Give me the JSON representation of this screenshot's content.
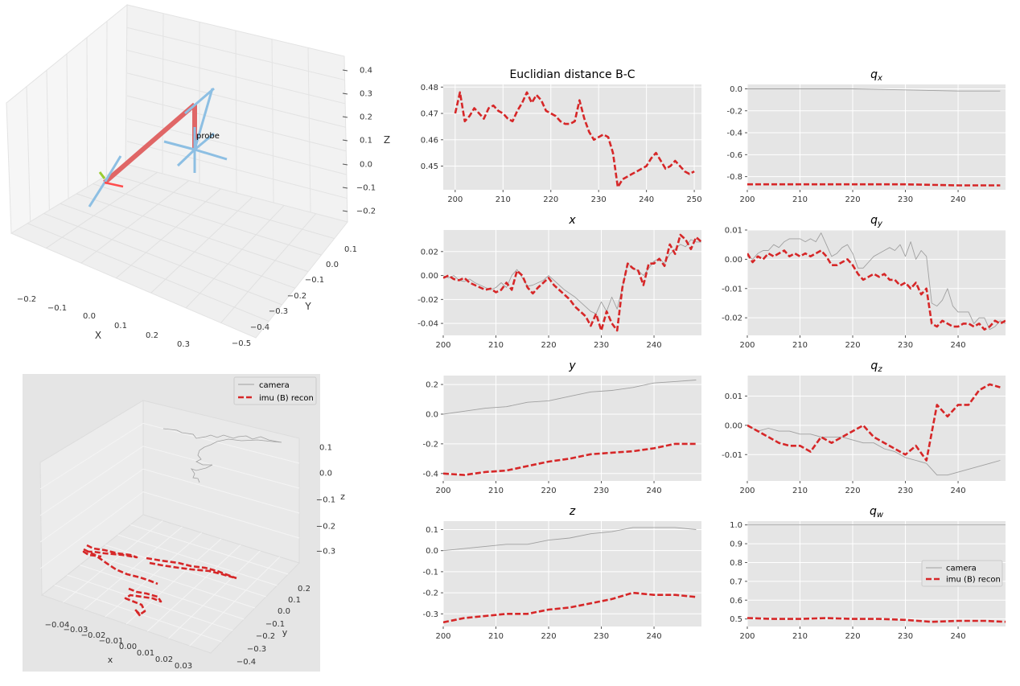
{
  "chart_data": [
    {
      "id": "frames3d",
      "type": "scatter",
      "title": "",
      "xlabel": "X",
      "ylabel": "Y",
      "zlabel": "Z",
      "xticks": [
        "−0.2",
        "−0.1",
        "0.0",
        "0.1",
        "0.2",
        "0.3"
      ],
      "yticks": [
        "0.1",
        "0.0",
        "−0.1",
        "−0.2",
        "−0.3",
        "−0.4",
        "−0.5"
      ],
      "zticks": [
        "0.4",
        "0.3",
        "0.2",
        "0.1",
        "0.0",
        "−0.1",
        "−0.2"
      ],
      "annotations": [
        "probe"
      ],
      "colors": {
        "arrow": "#8dbfe3",
        "link": "#e06666",
        "small_green": "#9acd32"
      }
    },
    {
      "id": "traj3d",
      "type": "line",
      "xlabel": "x",
      "ylabel": "y",
      "zlabel": "z",
      "xticks": [
        "−0.04",
        "−0.03",
        "−0.02",
        "−0.01",
        "0.00",
        "0.01",
        "0.02",
        "0.03"
      ],
      "yticks": [
        "0.2",
        "0.1",
        "0.0",
        "−0.1",
        "−0.2",
        "−0.3",
        "−0.4"
      ],
      "zticks": [
        "0.1",
        "0.0",
        "−0.1",
        "−0.2",
        "−0.3"
      ],
      "legend": [
        "camera",
        "imu (B) recon"
      ],
      "legend_position": "top-right"
    },
    {
      "id": "dist",
      "type": "line",
      "title": "Euclidian distance B-C",
      "x": [
        200,
        201,
        202,
        203,
        204,
        205,
        206,
        207,
        208,
        209,
        210,
        211,
        212,
        213,
        214,
        215,
        216,
        217,
        218,
        219,
        220,
        221,
        222,
        223,
        224,
        225,
        226,
        227,
        228,
        229,
        230,
        231,
        232,
        233,
        234,
        235,
        236,
        237,
        238,
        239,
        240,
        241,
        242,
        243,
        244,
        245,
        246,
        247,
        248,
        249,
        250
      ],
      "series": [
        {
          "name": "",
          "style": "dashed",
          "color": "#d62728",
          "values": [
            0.47,
            0.478,
            0.467,
            0.469,
            0.472,
            0.47,
            0.468,
            0.472,
            0.473,
            0.471,
            0.47,
            0.468,
            0.467,
            0.471,
            0.474,
            0.478,
            0.474,
            0.477,
            0.475,
            0.471,
            0.47,
            0.469,
            0.467,
            0.466,
            0.466,
            0.467,
            0.475,
            0.468,
            0.463,
            0.46,
            0.461,
            0.462,
            0.461,
            0.455,
            0.442,
            0.445,
            0.446,
            0.447,
            0.448,
            0.449,
            0.45,
            0.453,
            0.455,
            0.452,
            0.449,
            0.45,
            0.452,
            0.45,
            0.448,
            0.447,
            0.448
          ]
        }
      ],
      "xlim": [
        197.5,
        251.5
      ],
      "ylim": [
        0.441,
        0.481
      ],
      "xticks": [
        200,
        210,
        220,
        230,
        240,
        250
      ],
      "yticks": [
        0.45,
        0.46,
        0.47,
        0.48
      ]
    },
    {
      "id": "qx",
      "type": "line",
      "title": "q_x",
      "x": [
        200,
        210,
        220,
        230,
        240,
        248
      ],
      "series": [
        {
          "name": "camera",
          "style": "solid",
          "color": "#a0a0a0",
          "values": [
            0.0,
            0.0,
            0.0,
            -0.01,
            -0.02,
            -0.02
          ]
        },
        {
          "name": "imu (B) recon",
          "style": "dashed",
          "color": "#d62728",
          "values": [
            -0.87,
            -0.87,
            -0.87,
            -0.87,
            -0.88,
            -0.88
          ]
        }
      ],
      "xlim": [
        200,
        249
      ],
      "ylim": [
        -0.92,
        0.04
      ],
      "xticks": [
        200,
        210,
        220,
        230,
        240
      ],
      "yticks": [
        0.0,
        -0.2,
        -0.4,
        -0.6,
        -0.8
      ]
    },
    {
      "id": "x",
      "type": "line",
      "title": "x",
      "x": [
        200,
        201,
        202,
        203,
        204,
        205,
        206,
        207,
        208,
        209,
        210,
        211,
        212,
        213,
        214,
        215,
        216,
        217,
        218,
        219,
        220,
        221,
        222,
        223,
        224,
        225,
        226,
        227,
        228,
        229,
        230,
        231,
        232,
        233,
        234,
        235,
        236,
        237,
        238,
        239,
        240,
        241,
        242,
        243,
        244,
        245,
        246,
        247,
        248,
        249
      ],
      "series": [
        {
          "name": "camera",
          "style": "solid",
          "color": "#a0a0a0",
          "values": [
            0.0,
            -0.002,
            0.0,
            -0.004,
            -0.005,
            -0.003,
            -0.006,
            -0.008,
            -0.01,
            -0.012,
            -0.01,
            -0.006,
            -0.01,
            0.0,
            0.005,
            -0.002,
            -0.009,
            -0.008,
            -0.006,
            -0.004,
            0.0,
            -0.004,
            -0.008,
            -0.012,
            -0.015,
            -0.018,
            -0.022,
            -0.026,
            -0.03,
            -0.032,
            -0.022,
            -0.03,
            -0.018,
            -0.028,
            -0.01,
            0.01,
            0.006,
            0.004,
            0.0,
            0.006,
            0.012,
            0.014,
            0.01,
            0.018,
            0.022,
            0.026,
            0.024,
            0.03,
            0.028,
            0.028
          ]
        },
        {
          "name": "imu (B) recon",
          "style": "dashed",
          "color": "#d62728",
          "values": [
            -0.002,
            0.0,
            -0.003,
            -0.004,
            -0.002,
            -0.006,
            -0.008,
            -0.01,
            -0.012,
            -0.011,
            -0.014,
            -0.012,
            -0.006,
            -0.012,
            0.004,
            0.0,
            -0.01,
            -0.015,
            -0.01,
            -0.006,
            -0.002,
            -0.008,
            -0.012,
            -0.016,
            -0.02,
            -0.026,
            -0.03,
            -0.034,
            -0.042,
            -0.032,
            -0.046,
            -0.03,
            -0.04,
            -0.046,
            -0.01,
            0.01,
            0.006,
            0.004,
            -0.008,
            0.01,
            0.01,
            0.014,
            0.008,
            0.026,
            0.018,
            0.034,
            0.03,
            0.022,
            0.032,
            0.028
          ]
        }
      ],
      "xlim": [
        200,
        249
      ],
      "ylim": [
        -0.05,
        0.038
      ],
      "xticks": [
        200,
        210,
        220,
        230,
        240
      ],
      "yticks": [
        0.02,
        0.0,
        -0.02,
        -0.04
      ]
    },
    {
      "id": "qy",
      "type": "line",
      "title": "q_y",
      "x": [
        200,
        201,
        202,
        203,
        204,
        205,
        206,
        207,
        208,
        209,
        210,
        211,
        212,
        213,
        214,
        215,
        216,
        217,
        218,
        219,
        220,
        221,
        222,
        223,
        224,
        225,
        226,
        227,
        228,
        229,
        230,
        231,
        232,
        233,
        234,
        235,
        236,
        237,
        238,
        239,
        240,
        241,
        242,
        243,
        244,
        245,
        246,
        247,
        248,
        249
      ],
      "series": [
        {
          "name": "camera",
          "style": "solid",
          "color": "#a0a0a0",
          "values": [
            0.001,
            0.0,
            0.002,
            0.003,
            0.003,
            0.005,
            0.004,
            0.006,
            0.007,
            0.007,
            0.007,
            0.006,
            0.007,
            0.006,
            0.009,
            0.005,
            0.001,
            0.002,
            0.004,
            0.005,
            0.002,
            -0.003,
            -0.003,
            -0.001,
            0.001,
            0.002,
            0.003,
            0.004,
            0.003,
            0.005,
            0.001,
            0.006,
            0.0,
            0.003,
            0.001,
            -0.015,
            -0.016,
            -0.014,
            -0.01,
            -0.016,
            -0.018,
            -0.018,
            -0.018,
            -0.022,
            -0.02,
            -0.02,
            -0.024,
            -0.023,
            -0.021,
            -0.022
          ]
        },
        {
          "name": "imu (B) recon",
          "style": "dashed",
          "color": "#d62728",
          "values": [
            0.002,
            -0.001,
            0.001,
            0.0,
            0.002,
            0.001,
            0.002,
            0.003,
            0.001,
            0.002,
            0.001,
            0.002,
            0.001,
            0.002,
            0.003,
            0.001,
            -0.002,
            -0.002,
            -0.001,
            0.0,
            -0.002,
            -0.005,
            -0.007,
            -0.006,
            -0.005,
            -0.006,
            -0.005,
            -0.007,
            -0.007,
            -0.009,
            -0.008,
            -0.01,
            -0.008,
            -0.012,
            -0.01,
            -0.022,
            -0.023,
            -0.021,
            -0.022,
            -0.023,
            -0.023,
            -0.022,
            -0.022,
            -0.023,
            -0.022,
            -0.024,
            -0.023,
            -0.021,
            -0.022,
            -0.021
          ]
        }
      ],
      "xlim": [
        200,
        249
      ],
      "ylim": [
        -0.026,
        0.01
      ],
      "xticks": [
        200,
        210,
        220,
        230,
        240
      ],
      "yticks": [
        0.01,
        0.0,
        -0.01,
        -0.02
      ]
    },
    {
      "id": "y",
      "type": "line",
      "title": "y",
      "x": [
        200,
        204,
        208,
        212,
        216,
        220,
        224,
        228,
        232,
        236,
        240,
        244,
        248
      ],
      "series": [
        {
          "name": "camera",
          "style": "solid",
          "color": "#a0a0a0",
          "values": [
            0.0,
            0.02,
            0.04,
            0.05,
            0.08,
            0.09,
            0.12,
            0.15,
            0.16,
            0.18,
            0.21,
            0.22,
            0.23
          ]
        },
        {
          "name": "imu (B) recon",
          "style": "dashed",
          "color": "#d62728",
          "values": [
            -0.4,
            -0.41,
            -0.39,
            -0.38,
            -0.35,
            -0.32,
            -0.3,
            -0.27,
            -0.26,
            -0.25,
            -0.23,
            -0.2,
            -0.2
          ]
        }
      ],
      "xlim": [
        200,
        249
      ],
      "ylim": [
        -0.45,
        0.26
      ],
      "xticks": [
        200,
        210,
        220,
        230,
        240
      ],
      "yticks": [
        0.2,
        0.0,
        -0.2,
        -0.4
      ]
    },
    {
      "id": "qz",
      "type": "line",
      "title": "q_z",
      "x": [
        200,
        202,
        204,
        206,
        208,
        210,
        212,
        214,
        216,
        218,
        220,
        222,
        224,
        226,
        228,
        230,
        232,
        234,
        236,
        238,
        240,
        242,
        244,
        246,
        248
      ],
      "series": [
        {
          "name": "camera",
          "style": "solid",
          "color": "#a0a0a0",
          "values": [
            0.0,
            -0.002,
            -0.001,
            -0.002,
            -0.002,
            -0.003,
            -0.003,
            -0.004,
            -0.004,
            -0.004,
            -0.005,
            -0.006,
            -0.006,
            -0.008,
            -0.009,
            -0.011,
            -0.012,
            -0.013,
            -0.017,
            -0.017,
            -0.016,
            -0.015,
            -0.014,
            -0.013,
            -0.012
          ]
        },
        {
          "name": "imu (B) recon",
          "style": "dashed",
          "color": "#d62728",
          "values": [
            0.0,
            -0.002,
            -0.004,
            -0.006,
            -0.007,
            -0.007,
            -0.009,
            -0.004,
            -0.006,
            -0.004,
            -0.002,
            0.0,
            -0.004,
            -0.006,
            -0.008,
            -0.01,
            -0.007,
            -0.012,
            0.007,
            0.003,
            0.007,
            0.007,
            0.012,
            0.014,
            0.013
          ]
        }
      ],
      "xlim": [
        200,
        249
      ],
      "ylim": [
        -0.019,
        0.017
      ],
      "xticks": [
        200,
        210,
        220,
        230,
        240
      ],
      "yticks": [
        0.01,
        0.0,
        -0.01
      ]
    },
    {
      "id": "z",
      "type": "line",
      "title": "z",
      "x": [
        200,
        204,
        208,
        212,
        216,
        220,
        224,
        228,
        232,
        236,
        240,
        244,
        248
      ],
      "series": [
        {
          "name": "camera",
          "style": "solid",
          "color": "#a0a0a0",
          "values": [
            0.0,
            0.01,
            0.02,
            0.03,
            0.03,
            0.05,
            0.06,
            0.08,
            0.09,
            0.11,
            0.11,
            0.11,
            0.1
          ]
        },
        {
          "name": "imu (B) recon",
          "style": "dashed",
          "color": "#d62728",
          "values": [
            -0.34,
            -0.32,
            -0.31,
            -0.3,
            -0.3,
            -0.28,
            -0.27,
            -0.25,
            -0.23,
            -0.2,
            -0.21,
            -0.21,
            -0.22
          ]
        }
      ],
      "xlim": [
        200,
        249
      ],
      "ylim": [
        -0.36,
        0.14
      ],
      "xticks": [
        200,
        210,
        220,
        230,
        240
      ],
      "yticks": [
        0.1,
        0.0,
        -0.1,
        -0.2,
        -0.3
      ]
    },
    {
      "id": "qw",
      "type": "line",
      "title": "q_w",
      "x": [
        200,
        205,
        210,
        215,
        220,
        225,
        230,
        235,
        240,
        245,
        249
      ],
      "series": [
        {
          "name": "camera",
          "style": "solid",
          "color": "#a0a0a0",
          "values": [
            1.0,
            1.0,
            1.0,
            1.0,
            1.0,
            1.0,
            1.0,
            1.0,
            1.0,
            1.0,
            1.0
          ]
        },
        {
          "name": "imu (B) recon",
          "style": "dashed",
          "color": "#d62728",
          "values": [
            0.505,
            0.5,
            0.5,
            0.505,
            0.5,
            0.5,
            0.495,
            0.485,
            0.49,
            0.49,
            0.485
          ]
        }
      ],
      "xlim": [
        200,
        249
      ],
      "ylim": [
        0.46,
        1.02
      ],
      "xticks": [
        200,
        210,
        220,
        230,
        240
      ],
      "yticks": [
        1.0,
        0.9,
        0.8,
        0.7,
        0.6,
        0.5
      ],
      "legend": [
        "camera",
        "imu (B) recon"
      ],
      "legend_position": "center-right"
    }
  ]
}
